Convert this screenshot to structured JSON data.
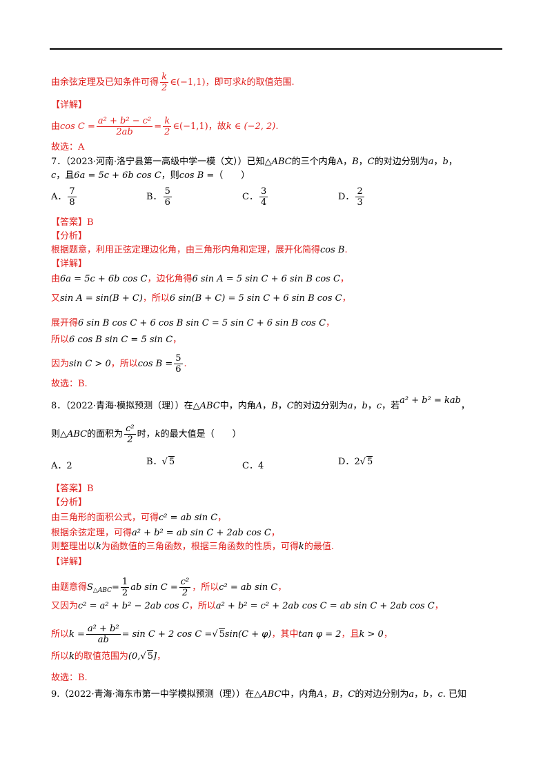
{
  "intro_line": {
    "pre": "由余弦定理及已知条件可得",
    "frac_num": "k",
    "frac_den": "2",
    "mid": "∈(−1,1)，即可求",
    "k": "k",
    "post": "的取值范围."
  },
  "detail_label_1": "【详解】",
  "line_cos": {
    "pre": "由",
    "lhs": "cos C =",
    "num": "a² + b² − c²",
    "den": "2ab",
    "eq": "=",
    "num2": "k",
    "den2": "2",
    "post": "∈(−1,1)",
    "t2": "，故",
    "res": "k ∈ (−2, 2)",
    "end": "."
  },
  "answer_6": "故选：A",
  "q7": {
    "line1": "7．（2023·河南·洛宁县第一高级中学一模（文））已知",
    "tri": "△ABC",
    "line1b": "的三个内角A，",
    "b": "B",
    "line1c": "，",
    "c": "C",
    "line1d": "的对边分别为",
    "a": "a",
    "comma": "，",
    "bb": "b",
    "comma2": "，",
    "line2a": "c",
    "line2b": "，且",
    "eq": "6a = 5c + 6b cos C",
    "line2c": "，则",
    "ask": "cos B =",
    "paren": "（　　）",
    "options": [
      {
        "label": "A．",
        "num": "7",
        "den": "8"
      },
      {
        "label": "B．",
        "num": "5",
        "den": "6"
      },
      {
        "label": "C．",
        "num": "3",
        "den": "4"
      },
      {
        "label": "D．",
        "num": "2",
        "den": "3"
      }
    ],
    "answer": "【答案】B",
    "analysis_label": "【分析】",
    "analysis": "根据题意，利用正弦定理边化角，由三角形内角和定理，展开化简得",
    "analysis_m": "cos B",
    "analysis_end": ".",
    "detail_label": "【详解】",
    "d1_pre": "由",
    "d1_m": "6a = 5c + 6b cos C",
    "d1_mid": "，边化角得",
    "d1_m2": "6 sin A = 5 sin C + 6 sin B cos C",
    "d1_end": "，",
    "d2_pre": "又",
    "d2_m": "sin A = sin(B + C)",
    "d2_mid": "，所以",
    "d2_m2": "6 sin(B + C) = 5 sin C + 6 sin B cos C",
    "d2_end": "，",
    "d3_pre": "展开得",
    "d3_m": "6 sin B cos C + 6 cos B sin C = 5 sin C + 6 sin B cos C",
    "d3_end": "，",
    "d4_pre": "所以",
    "d4_m": "6 cos B sin C = 5 sin C",
    "d4_end": "，",
    "d5_pre": "因为",
    "d5_m": "sin C > 0",
    "d5_mid": "，所以",
    "d5_m2": "cos B =",
    "d5_num": "5",
    "d5_den": "6",
    "d5_end": ".",
    "final": "故选：B."
  },
  "q8": {
    "line1": "8．（2022·青海·模拟预测（理））在△",
    "abc": "ABC",
    "line1b": "中，内角",
    "A": "A",
    "B": "B",
    "C": "C",
    "sep": "，",
    "line1c": "的对边分别为",
    "a": "a",
    "b": "b",
    "c": "c",
    "line1d": "，若",
    "cond": "a² + b² = kab",
    "line1e": "，",
    "line2a": "则△",
    "line2b": "的面积为",
    "frac_num": "c²",
    "frac_den": "2",
    "line2c": "时，",
    "k": "k",
    "line2d": "的最大值是（　　）",
    "options": [
      {
        "label": "A．",
        "val": "2"
      },
      {
        "label": "B．",
        "val": "5",
        "sqrt": true
      },
      {
        "label": "C．",
        "val": "4"
      },
      {
        "label": "D．",
        "val": "5",
        "sqrt": true,
        "coef": "2"
      }
    ],
    "answer": "【答案】B",
    "analysis_label": "【分析】",
    "a1_pre": "由三角形的面积公式，可得",
    "a1_m": "c² = ab sin C",
    "a1_end": "，",
    "a2_pre": "根据余弦定理，可得",
    "a2_m": "a² + b² = ab sin C + 2ab cos C",
    "a2_end": "，",
    "a3_pre": "则整理出以",
    "a3_k": "k",
    "a3_mid": "为函数值的三角函数，根据三角函数的性质，可得",
    "a3_k2": "k",
    "a3_end": "的最值.",
    "detail_label": "【详解】",
    "d1_pre": "由题意得",
    "d1_s": "S",
    "d1_sub": "△ABC",
    "d1_eq": "=",
    "d1_num": "1",
    "d1_den": "2",
    "d1_m": "ab sin C =",
    "d1_num2": "c²",
    "d1_den2": "2",
    "d1_mid": "，所以",
    "d1_m2": "c² = ab sin C",
    "d1_end": "，",
    "d2_pre": "又因为",
    "d2_m": "c² = a² + b² − 2ab cos C",
    "d2_mid": "，所以",
    "d2_m2": "a² + b² = c² + 2ab cos C = ab sin C + 2ab cos C",
    "d2_end": "，",
    "d3_pre": "所以",
    "d3_k": "k =",
    "d3_num": "a² + b²",
    "d3_den": "ab",
    "d3_m": "= sin C + 2 cos C =",
    "d3_root": "5",
    "d3_m2": "sin(C + φ)",
    "d3_mid": "，其中",
    "d3_m3": "tan φ = 2",
    "d3_mid2": "，且",
    "d3_m4": "k > 0",
    "d3_end": "，",
    "d4_pre": "所以",
    "d4_k": "k",
    "d4_mid": "的取值范围为",
    "d4_m": "(0,",
    "d4_root": "5",
    "d4_m2": "]",
    "d4_end": "，",
    "final": "故选：B."
  },
  "q9": {
    "line1": "9.（2022·青海·海东市第一中学模拟预测（理））在",
    "tri": "△ABC",
    "line1b": "中，内角",
    "A": "A",
    "B": "B",
    "C": "C",
    "line1c": "的对边分别为",
    "a": "a",
    "b": "b",
    "c": "c",
    "line1d": ". 已知"
  }
}
